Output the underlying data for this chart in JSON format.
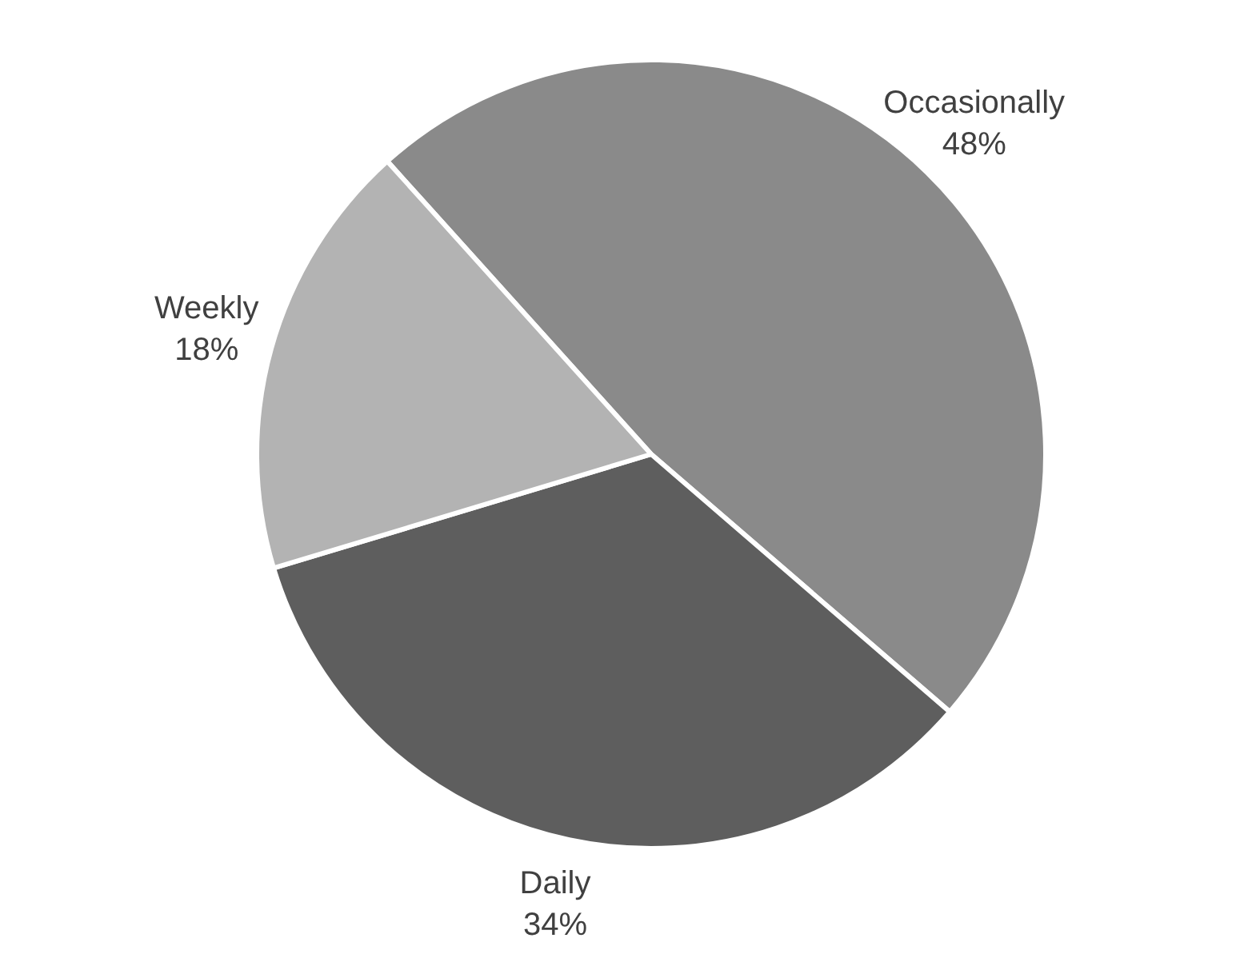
{
  "chart_data": {
    "type": "pie",
    "categories": [
      "Occasionally",
      "Daily",
      "Weekly"
    ],
    "values": [
      48,
      34,
      18
    ],
    "colors": [
      "#8a8a8a",
      "#5e5e5e",
      "#b3b3b3"
    ],
    "value_labels": [
      "48%",
      "34%",
      "18%"
    ],
    "legend": false
  }
}
